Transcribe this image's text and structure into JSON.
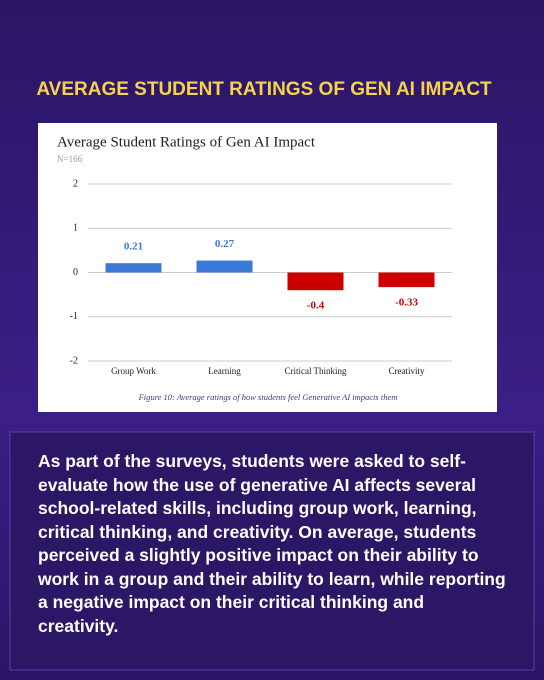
{
  "header": {
    "title": "AVERAGE STUDENT RATINGS OF GEN AI IMPACT"
  },
  "chart_data": {
    "type": "bar",
    "title": "Average Student Ratings of Gen AI Impact",
    "subtitle": "N=166",
    "categories": [
      "Group Work",
      "Learning",
      "Critical Thinking",
      "Creativity"
    ],
    "values": [
      0.21,
      0.27,
      -0.4,
      -0.33
    ],
    "colors": [
      "#3c78d8",
      "#3c78d8",
      "#cc0000",
      "#cc0000"
    ],
    "ylim": [
      -2,
      2
    ],
    "yticks": [
      -2,
      -1,
      0,
      1,
      2
    ],
    "grid": true,
    "caption": "Figure 10: Average ratings of how students feel Generative AI impacts them"
  },
  "body": {
    "text": "As part of the surveys, students were asked to self-evaluate how the use of generative AI affects several school-related skills, including group work, learning, critical thinking, and creativity. On average, students perceived a slightly positive impact on their ability to work in a group and their ability to learn, while reporting a negative impact on their critical thinking and creativity."
  }
}
